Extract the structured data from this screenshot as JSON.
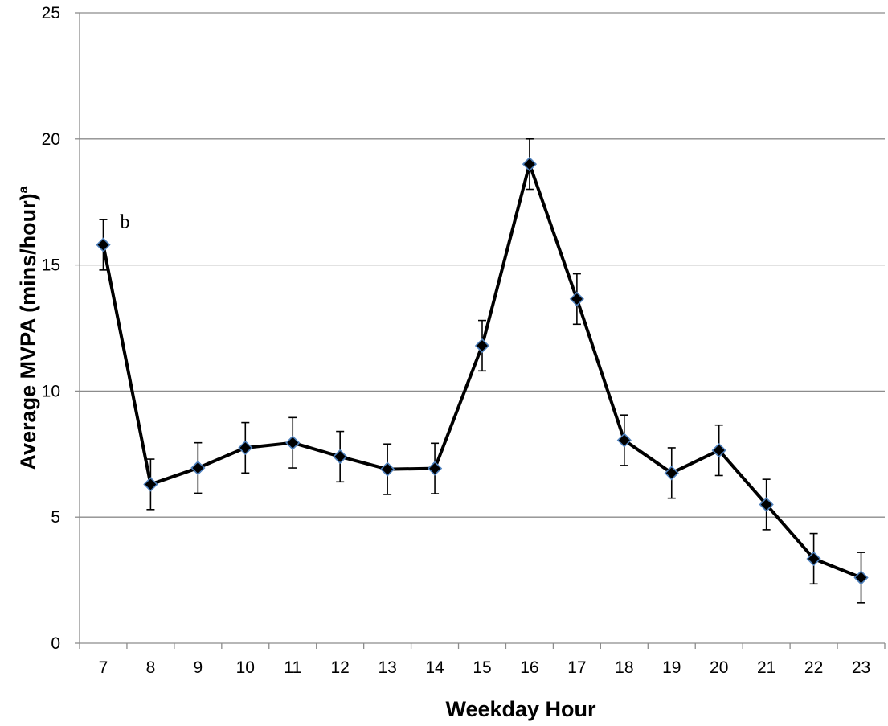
{
  "chart_data": {
    "type": "line",
    "title": "",
    "xlabel": "Weekday Hour",
    "ylabel": "Average MVPA (mins/hour)",
    "ylabel_superscript": "a",
    "ylim": [
      0,
      25
    ],
    "yticks": [
      0,
      5,
      10,
      15,
      20,
      25
    ],
    "grid": "horizontal",
    "legend": "none",
    "categories": [
      "7",
      "8",
      "9",
      "10",
      "11",
      "12",
      "13",
      "14",
      "15",
      "16",
      "17",
      "18",
      "19",
      "20",
      "21",
      "22",
      "23"
    ],
    "series": [
      {
        "values": [
          15.8,
          6.3,
          6.95,
          7.75,
          7.95,
          7.4,
          6.9,
          6.93,
          11.8,
          19.0,
          13.65,
          8.05,
          6.75,
          7.65,
          5.5,
          3.35,
          2.6
        ],
        "error": [
          1.0,
          1.0,
          1.0,
          1.0,
          1.0,
          1.0,
          1.0,
          1.0,
          1.0,
          1.0,
          1.0,
          1.0,
          1.0,
          1.0,
          1.0,
          1.0,
          1.0
        ],
        "color": "#000000",
        "marker": "diamond",
        "marker_fill": "#000000",
        "marker_edge": "#4f81bd"
      }
    ],
    "annotations": [
      {
        "text": "b",
        "category": "7",
        "value": 15.8
      }
    ]
  }
}
